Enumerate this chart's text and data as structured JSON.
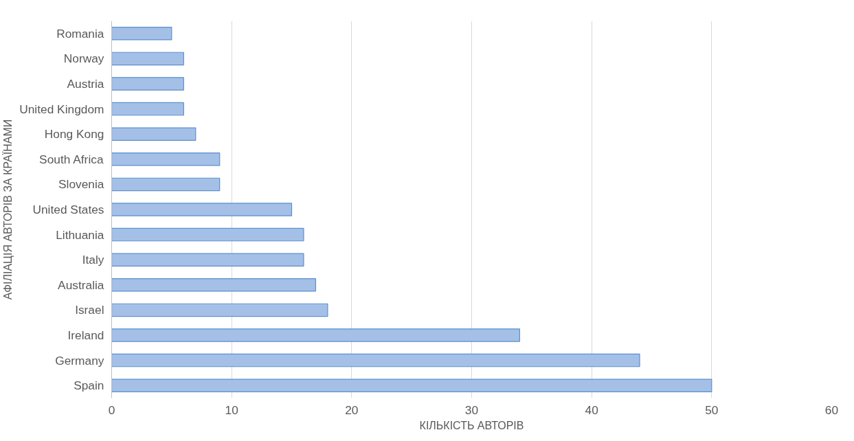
{
  "chart_data": {
    "type": "bar",
    "orientation": "horizontal",
    "xlabel": "КІЛЬКІСТЬ АВТОРІВ",
    "ylabel": "АФІЛІАЦІЯ АВТОРІВ ЗА КРАЇНАМИ",
    "categories": [
      "Romania",
      "Norway",
      "Austria",
      "United Kingdom",
      "Hong Kong",
      "South Africa",
      "Slovenia",
      "United States",
      "Lithuania",
      "Italy",
      "Australia",
      "Israel",
      "Ireland",
      "Germany",
      "Spain"
    ],
    "values": [
      5,
      6,
      6,
      6,
      7,
      9,
      9,
      15,
      16,
      16,
      17,
      18,
      34,
      44,
      50
    ],
    "color": "#a5c0e6",
    "xlim": [
      0,
      60
    ],
    "xticks": [
      0,
      10,
      20,
      30,
      40,
      50,
      60
    ],
    "grid": "x"
  }
}
